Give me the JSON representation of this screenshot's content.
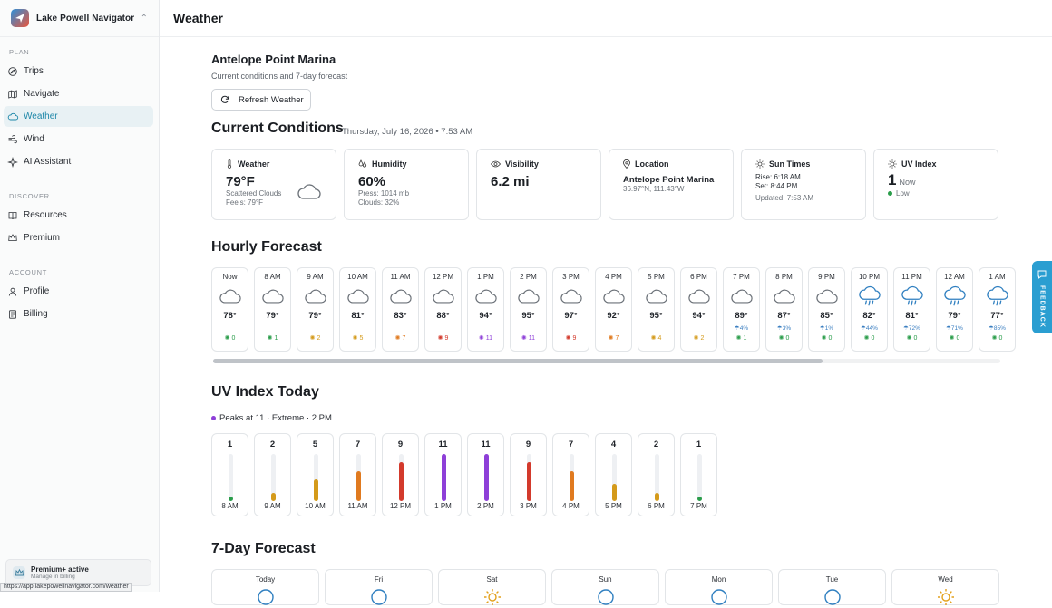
{
  "app": {
    "name": "Lake Powell Navigator",
    "page_title": "Weather",
    "status_url": "https://app.lakepowellnavigator.com/weather"
  },
  "sidebar": {
    "sections": [
      {
        "label": "PLAN",
        "items": [
          {
            "label": "Trips",
            "icon": "compass-icon"
          },
          {
            "label": "Navigate",
            "icon": "map-icon"
          },
          {
            "label": "Weather",
            "icon": "cloud-icon",
            "active": true
          },
          {
            "label": "Wind",
            "icon": "wind-icon"
          },
          {
            "label": "AI Assistant",
            "icon": "sparkle-icon"
          }
        ]
      },
      {
        "label": "DISCOVER",
        "items": [
          {
            "label": "Resources",
            "icon": "book-icon"
          },
          {
            "label": "Premium",
            "icon": "crown-icon"
          }
        ]
      },
      {
        "label": "ACCOUNT",
        "items": [
          {
            "label": "Profile",
            "icon": "user-icon"
          },
          {
            "label": "Billing",
            "icon": "receipt-icon"
          }
        ]
      }
    ],
    "premium": {
      "title": "Premium+ active",
      "subtitle": "Manage in billing"
    }
  },
  "location": {
    "name": "Antelope Point Marina",
    "subtitle": "Current conditions and 7-day forecast",
    "refresh_label": "Refresh Weather"
  },
  "current": {
    "heading": "Current Conditions",
    "date": "Thursday, July 16, 2026 • 7:53 AM",
    "weather": {
      "label": "Weather",
      "temp": "79°F",
      "desc": "Scattered Clouds",
      "feels": "Feels: 79°F"
    },
    "humidity": {
      "label": "Humidity",
      "value": "60%",
      "pressure": "Press: 1014 mb",
      "clouds": "Clouds: 32%"
    },
    "visibility": {
      "label": "Visibility",
      "value": "6.2 mi"
    },
    "location": {
      "label": "Location",
      "name": "Antelope Point Marina",
      "coords": "36.97°N, 111.43°W"
    },
    "sun": {
      "label": "Sun Times",
      "rise": "Rise: 6:18 AM",
      "set": "Set: 8:44 PM",
      "updated": "Updated: 7:53 AM"
    },
    "uv": {
      "label": "UV Index",
      "value": "1",
      "now": "Now",
      "level": "Low"
    }
  },
  "hourly": {
    "heading": "Hourly Forecast",
    "items": [
      {
        "time": "Now",
        "temp": "78°",
        "uv": "0",
        "icon": "cloud",
        "precip": ""
      },
      {
        "time": "8 AM",
        "temp": "79°",
        "uv": "1",
        "icon": "cloud",
        "precip": ""
      },
      {
        "time": "9 AM",
        "temp": "79°",
        "uv": "2",
        "icon": "cloud",
        "precip": ""
      },
      {
        "time": "10 AM",
        "temp": "81°",
        "uv": "5",
        "icon": "cloud",
        "precip": ""
      },
      {
        "time": "11 AM",
        "temp": "83°",
        "uv": "7",
        "icon": "cloud",
        "precip": ""
      },
      {
        "time": "12 PM",
        "temp": "88°",
        "uv": "9",
        "icon": "cloud",
        "precip": ""
      },
      {
        "time": "1 PM",
        "temp": "94°",
        "uv": "11",
        "icon": "cloud",
        "precip": ""
      },
      {
        "time": "2 PM",
        "temp": "95°",
        "uv": "11",
        "icon": "cloud",
        "precip": ""
      },
      {
        "time": "3 PM",
        "temp": "97°",
        "uv": "9",
        "icon": "cloud",
        "precip": ""
      },
      {
        "time": "4 PM",
        "temp": "92°",
        "uv": "7",
        "icon": "cloud",
        "precip": ""
      },
      {
        "time": "5 PM",
        "temp": "95°",
        "uv": "4",
        "icon": "cloud",
        "precip": ""
      },
      {
        "time": "6 PM",
        "temp": "94°",
        "uv": "2",
        "icon": "cloud",
        "precip": ""
      },
      {
        "time": "7 PM",
        "temp": "89°",
        "uv": "1",
        "icon": "cloud",
        "precip": "4%"
      },
      {
        "time": "8 PM",
        "temp": "87°",
        "uv": "0",
        "icon": "cloud",
        "precip": "3%"
      },
      {
        "time": "9 PM",
        "temp": "85°",
        "uv": "0",
        "icon": "cloud",
        "precip": "1%"
      },
      {
        "time": "10 PM",
        "temp": "82°",
        "uv": "0",
        "icon": "rain",
        "precip": "44%"
      },
      {
        "time": "11 PM",
        "temp": "81°",
        "uv": "0",
        "icon": "rain",
        "precip": "72%"
      },
      {
        "time": "12 AM",
        "temp": "79°",
        "uv": "0",
        "icon": "rain",
        "precip": "71%"
      },
      {
        "time": "1 AM",
        "temp": "77°",
        "uv": "0",
        "icon": "rain",
        "precip": "85%"
      }
    ]
  },
  "uv_today": {
    "heading": "UV Index Today",
    "peak": "Peaks at 11 · Extreme · 2 PM",
    "items": [
      {
        "time": "8 AM",
        "value": 1
      },
      {
        "time": "9 AM",
        "value": 2
      },
      {
        "time": "10 AM",
        "value": 5
      },
      {
        "time": "11 AM",
        "value": 7
      },
      {
        "time": "12 PM",
        "value": 9
      },
      {
        "time": "1 PM",
        "value": 11
      },
      {
        "time": "2 PM",
        "value": 11
      },
      {
        "time": "3 PM",
        "value": 9
      },
      {
        "time": "4 PM",
        "value": 7
      },
      {
        "time": "5 PM",
        "value": 4
      },
      {
        "time": "6 PM",
        "value": 2
      },
      {
        "time": "7 PM",
        "value": 1
      }
    ]
  },
  "seven_day": {
    "heading": "7-Day Forecast",
    "days": [
      {
        "day": "Today",
        "icon": "cloud"
      },
      {
        "day": "Fri",
        "icon": "cloud"
      },
      {
        "day": "Sat",
        "icon": "sun"
      },
      {
        "day": "Sun",
        "icon": "cloud"
      },
      {
        "day": "Mon",
        "icon": "cloud"
      },
      {
        "day": "Tue",
        "icon": "cloud"
      },
      {
        "day": "Wed",
        "icon": "sun"
      }
    ]
  },
  "feedback_label": "FEEDBACK",
  "colors": {
    "accent": "#1d87a8",
    "uv_low": "#2a9d4a",
    "uv_moderate": "#d49a1a",
    "uv_high": "#e07a1f",
    "uv_very_high": "#d33a2c",
    "uv_extreme": "#8e3fd8"
  }
}
